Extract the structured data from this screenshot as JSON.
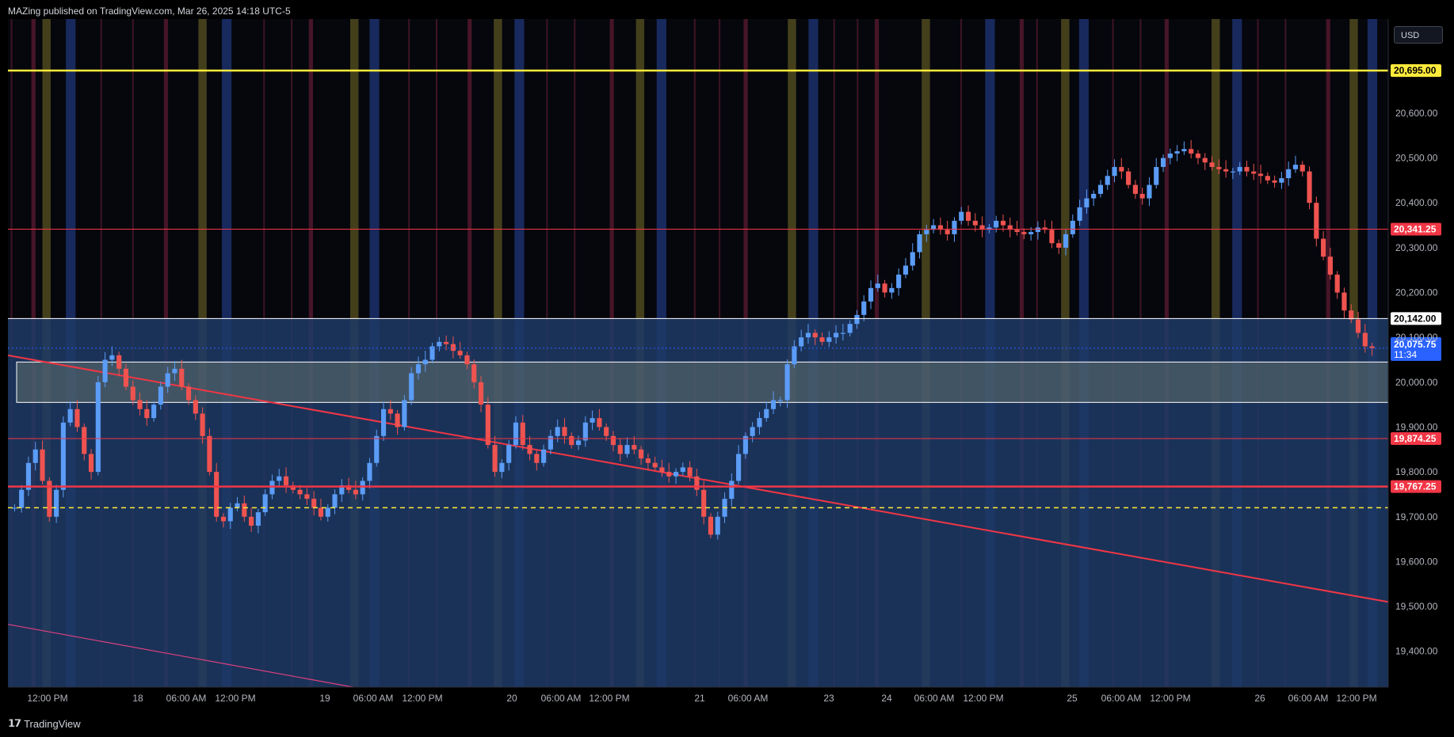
{
  "header": {
    "publisher_text": "MAZing published on TradingView.com, Mar 26, 2025 14:18 UTC-5"
  },
  "currency": "USD",
  "brand": "TradingView",
  "colors": {
    "bull": "#5b9cf6",
    "bear": "#ef5350",
    "background": "#000000",
    "zone_blue": "#1e3a66",
    "yellow_line": "#ffeb3b",
    "red_line": "#f23645",
    "current_price_badge": "#2962ff"
  },
  "chart_data": {
    "type": "candlestick",
    "ylim": [
      19320,
      20810
    ],
    "price_axis_ticks": [
      19400,
      19500,
      19600,
      19700,
      19800,
      19900,
      20000,
      20100,
      20200,
      20300,
      20400,
      20500,
      20600
    ],
    "price_axis_tick_labels": [
      "19,400.00",
      "19,500.00",
      "19,600.00",
      "19,700.00",
      "19,800.00",
      "19,900.00",
      "20,000.00",
      "20,100.00",
      "20,200.00",
      "20,300.00",
      "20,400.00",
      "20,500.00",
      "20,600.00"
    ],
    "time_axis_labels": [
      "12:00 PM",
      "18",
      "06:00 AM",
      "12:00 PM",
      "19",
      "06:00 AM",
      "12:00 PM",
      "20",
      "06:00 AM",
      "12:00 PM",
      "21",
      "06:00 AM",
      "23",
      "24",
      "06:00 AM",
      "12:00 PM",
      "25",
      "06:00 AM",
      "12:00 PM",
      "26",
      "06:00 AM",
      "12:00 PM"
    ],
    "horizontal_levels": [
      {
        "price": 20695.0,
        "label": "20,695.00",
        "color": "#ffeb3b",
        "style": "solid-thick",
        "badge_text_color": "#000000"
      },
      {
        "price": 20341.25,
        "label": "20,341.25",
        "color": "#f23645",
        "style": "solid",
        "badge_text_color": "#ffffff"
      },
      {
        "price": 20142.0,
        "label": "20,142.00",
        "color": "#ffffff",
        "style": "solid",
        "badge_text_color": "#000000"
      },
      {
        "price": 19874.25,
        "label": "19,874.25",
        "color": "#f23645",
        "style": "solid",
        "badge_text_color": "#ffffff"
      },
      {
        "price": 19767.25,
        "label": "19,767.25",
        "color": "#f23645",
        "style": "solid-thick",
        "badge_text_color": "#ffffff"
      },
      {
        "price": 19720.0,
        "label": "",
        "color": "#ffeb3b",
        "style": "dashed",
        "badge_text_color": ""
      }
    ],
    "current_price": {
      "price": 20075.75,
      "label": "20,075.75",
      "countdown": "11:34"
    },
    "demand_box": {
      "top": 20045,
      "bottom": 19955
    },
    "blue_zone_top": 20142,
    "trendlines": [
      {
        "from_x": 0.0,
        "from_price": 20060,
        "to_x": 1.0,
        "to_price": 19510,
        "color": "#f23645"
      },
      {
        "from_x": 0.0,
        "from_price": 19460,
        "to_x": 0.25,
        "to_price": 19320,
        "color": "#e0407f"
      }
    ],
    "price_path": [
      19720,
      19760,
      19820,
      19850,
      19780,
      19700,
      19760,
      19910,
      19940,
      19900,
      19840,
      19800,
      20000,
      20050,
      20060,
      20030,
      19990,
      19960,
      19940,
      19920,
      19950,
      19990,
      20020,
      20030,
      19990,
      19960,
      19930,
      19880,
      19800,
      19700,
      19690,
      19720,
      19730,
      19700,
      19680,
      19710,
      19750,
      19780,
      19790,
      19770,
      19760,
      19750,
      19740,
      19720,
      19700,
      19720,
      19750,
      19770,
      19760,
      19750,
      19780,
      19820,
      19880,
      19940,
      19930,
      19900,
      19960,
      20020,
      20040,
      20050,
      20080,
      20090,
      20085,
      20070,
      20060,
      20040,
      20000,
      19950,
      19860,
      19800,
      19820,
      19860,
      19910,
      19860,
      19840,
      19820,
      19850,
      19880,
      19900,
      19880,
      19860,
      19870,
      19910,
      19920,
      19900,
      19880,
      19860,
      19840,
      19860,
      19850,
      19830,
      19820,
      19810,
      19800,
      19790,
      19800,
      19810,
      19790,
      19760,
      19700,
      19660,
      19700,
      19740,
      19780,
      19840,
      19880,
      19900,
      19920,
      19940,
      19960,
      19960,
      20040,
      20080,
      20100,
      20110,
      20100,
      20090,
      20100,
      20110,
      20110,
      20130,
      20150,
      20180,
      20210,
      20220,
      20200,
      20210,
      20240,
      20260,
      20290,
      20330,
      20340,
      20350,
      20340,
      20330,
      20360,
      20380,
      20360,
      20350,
      20340,
      20345,
      20360,
      20350,
      20340,
      20335,
      20330,
      20335,
      20345,
      20340,
      20310,
      20300,
      20330,
      20360,
      20390,
      20410,
      20420,
      20440,
      20460,
      20480,
      20470,
      20440,
      20420,
      20410,
      20440,
      20480,
      20500,
      20510,
      20515,
      20520,
      20510,
      20500,
      20490,
      20480,
      20475,
      20470,
      20470,
      20480,
      20470,
      20465,
      20460,
      20450,
      20445,
      20455,
      20475,
      20485,
      20470,
      20400,
      20320,
      20280,
      20240,
      20200,
      20160,
      20140,
      20110,
      20080,
      20076
    ],
    "session_bands": [
      {
        "x": 0.017,
        "w": 0.003,
        "kind": "red"
      },
      {
        "x": 0.025,
        "w": 0.006,
        "kind": "yellow"
      },
      {
        "x": 0.042,
        "w": 0.007,
        "kind": "blue"
      },
      {
        "x": 0.113,
        "w": 0.003,
        "kind": "red"
      },
      {
        "x": 0.138,
        "w": 0.006,
        "kind": "yellow"
      },
      {
        "x": 0.155,
        "w": 0.007,
        "kind": "blue"
      },
      {
        "x": 0.218,
        "w": 0.003,
        "kind": "red"
      },
      {
        "x": 0.248,
        "w": 0.006,
        "kind": "yellow"
      },
      {
        "x": 0.262,
        "w": 0.007,
        "kind": "blue"
      },
      {
        "x": 0.333,
        "w": 0.003,
        "kind": "red"
      },
      {
        "x": 0.352,
        "w": 0.006,
        "kind": "yellow"
      },
      {
        "x": 0.367,
        "w": 0.007,
        "kind": "blue"
      },
      {
        "x": 0.436,
        "w": 0.003,
        "kind": "red"
      },
      {
        "x": 0.455,
        "w": 0.006,
        "kind": "yellow"
      },
      {
        "x": 0.47,
        "w": 0.007,
        "kind": "blue"
      },
      {
        "x": 0.533,
        "w": 0.003,
        "kind": "red"
      },
      {
        "x": 0.565,
        "w": 0.006,
        "kind": "yellow"
      },
      {
        "x": 0.58,
        "w": 0.007,
        "kind": "blue"
      },
      {
        "x": 0.628,
        "w": 0.003,
        "kind": "red"
      },
      {
        "x": 0.662,
        "w": 0.006,
        "kind": "yellow"
      },
      {
        "x": 0.708,
        "w": 0.007,
        "kind": "blue"
      },
      {
        "x": 0.733,
        "w": 0.003,
        "kind": "red"
      },
      {
        "x": 0.763,
        "w": 0.006,
        "kind": "yellow"
      },
      {
        "x": 0.776,
        "w": 0.007,
        "kind": "blue"
      },
      {
        "x": 0.838,
        "w": 0.003,
        "kind": "red"
      },
      {
        "x": 0.872,
        "w": 0.006,
        "kind": "yellow"
      },
      {
        "x": 0.887,
        "w": 0.007,
        "kind": "blue"
      },
      {
        "x": 0.955,
        "w": 0.003,
        "kind": "red"
      },
      {
        "x": 0.972,
        "w": 0.006,
        "kind": "yellow"
      },
      {
        "x": 0.985,
        "w": 0.007,
        "kind": "blue"
      }
    ],
    "red_markers": [
      0.002,
      0.067,
      0.09,
      0.185,
      0.205,
      0.29,
      0.31,
      0.39,
      0.41,
      0.497,
      0.515,
      0.598,
      0.615,
      0.69,
      0.745,
      0.8,
      0.82,
      0.905,
      0.925
    ]
  }
}
